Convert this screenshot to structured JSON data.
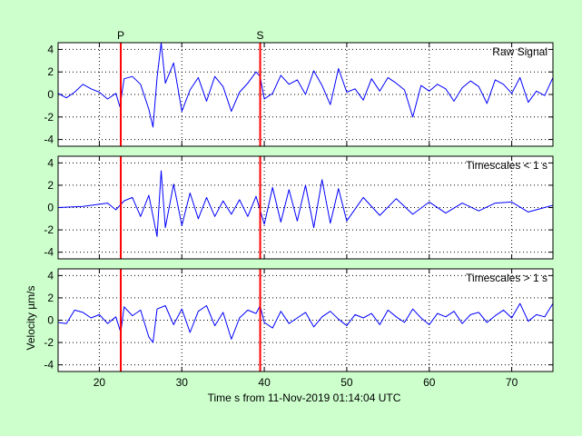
{
  "colors": {
    "background": "#ccffcc",
    "axes_face": "#ffffff",
    "signal": "#0000ff",
    "phase_marker": "#ff0000",
    "grid": "#000000"
  },
  "chart_data": [
    {
      "type": "line",
      "panel_label": "Raw Signal",
      "xlim": [
        15,
        75
      ],
      "ylim": [
        -4.6,
        4.6
      ],
      "yticks": [
        -4,
        -2,
        0,
        2,
        4
      ],
      "ytick_labels": [
        "-4",
        "-2",
        "0",
        "2",
        "4"
      ],
      "grid": "dotted",
      "series": [
        {
          "x": [
            15,
            16,
            17,
            18,
            19,
            20,
            21,
            22,
            22.5,
            23,
            24,
            25,
            26,
            26.5,
            27,
            27.5,
            28,
            29,
            30,
            31,
            32,
            33,
            34,
            35,
            36,
            37,
            38,
            39,
            39.5,
            40,
            41,
            42,
            43,
            44,
            45,
            46,
            47,
            48,
            49,
            50,
            51,
            52,
            53,
            54,
            55,
            56,
            57,
            58,
            59,
            60,
            61,
            62,
            63,
            64,
            65,
            66,
            67,
            68,
            69,
            70,
            71,
            72,
            73,
            74,
            75
          ],
          "y": [
            0.1,
            -0.3,
            0.2,
            0.9,
            0.5,
            0.2,
            -0.4,
            0.1,
            -1.1,
            1.4,
            1.6,
            0.9,
            -1.3,
            -2.9,
            1.5,
            4.6,
            1.0,
            2.8,
            -1.5,
            0.4,
            1.5,
            -0.6,
            1.6,
            0.7,
            -1.5,
            0.2,
            1.0,
            2.0,
            1.6,
            -0.4,
            0.1,
            1.7,
            0.9,
            1.3,
            0.0,
            2.1,
            0.8,
            -0.9,
            2.3,
            0.2,
            0.5,
            -0.5,
            1.4,
            0.3,
            1.5,
            1.0,
            0.4,
            -2.0,
            0.8,
            0.3,
            0.9,
            0.5,
            -0.6,
            0.6,
            1.2,
            0.7,
            -0.8,
            1.3,
            0.9,
            0.1,
            1.5,
            -0.7,
            0.3,
            -0.1,
            1.5
          ]
        }
      ]
    },
    {
      "type": "line",
      "panel_label": "Timescales < 1 s",
      "xlim": [
        15,
        75
      ],
      "ylim": [
        -4.6,
        4.6
      ],
      "yticks": [
        -4,
        -2,
        0,
        2,
        4
      ],
      "ytick_labels": [
        "-4",
        "-2",
        "0",
        "2",
        "4"
      ],
      "grid": "dotted",
      "series": [
        {
          "x": [
            15,
            18,
            21,
            22,
            23,
            24,
            25,
            26,
            27,
            27.5,
            28,
            29,
            30,
            31,
            32,
            33,
            34,
            35,
            36,
            37,
            38,
            39,
            40,
            41,
            42,
            43,
            44,
            45,
            46,
            47,
            48,
            49,
            50,
            52,
            54,
            56,
            58,
            60,
            62,
            64,
            66,
            68,
            70,
            72,
            75
          ],
          "y": [
            0.0,
            0.1,
            0.4,
            -0.2,
            0.6,
            0.9,
            -0.8,
            1.1,
            -2.6,
            3.3,
            -1.8,
            2.1,
            -1.6,
            1.3,
            -1.0,
            0.9,
            -0.8,
            0.6,
            -0.6,
            0.7,
            -0.8,
            1.0,
            -1.5,
            1.8,
            -1.3,
            1.6,
            -1.2,
            2.0,
            -1.8,
            2.5,
            -1.4,
            1.7,
            -1.2,
            0.9,
            -0.7,
            0.8,
            -0.6,
            0.5,
            -0.5,
            0.4,
            -0.3,
            0.4,
            0.5,
            -0.4,
            0.2
          ]
        }
      ]
    },
    {
      "type": "line",
      "panel_label": "Timescales > 1 s",
      "ylabel": "Velocity µm/s",
      "xlabel": "Time s from 11-Nov-2019 01:14:04 UTC",
      "xlim": [
        15,
        75
      ],
      "xticks": [
        20,
        30,
        40,
        50,
        60,
        70
      ],
      "xtick_labels": [
        "20",
        "30",
        "40",
        "50",
        "60",
        "70"
      ],
      "ylim": [
        -4.6,
        4.6
      ],
      "yticks": [
        -4,
        -2,
        0,
        2,
        4
      ],
      "ytick_labels": [
        "-4",
        "-2",
        "0",
        "2",
        "4"
      ],
      "grid": "dotted",
      "series": [
        {
          "x": [
            15,
            16,
            17,
            18,
            19,
            20,
            21,
            22,
            22.6,
            23,
            24,
            25,
            26,
            26.5,
            27,
            28,
            29,
            30,
            31,
            32,
            33,
            34,
            35,
            36,
            37,
            38,
            39,
            39.5,
            40,
            41,
            42,
            43,
            44,
            45,
            46,
            47,
            48,
            49,
            50,
            51,
            52,
            53,
            54,
            55,
            56,
            57,
            58,
            59,
            60,
            61,
            62,
            63,
            64,
            65,
            66,
            67,
            68,
            69,
            70,
            71,
            72,
            73,
            74,
            75
          ],
          "y": [
            -0.2,
            -0.3,
            0.9,
            0.7,
            0.2,
            0.5,
            -0.3,
            0.3,
            -1.1,
            1.2,
            0.4,
            0.9,
            -1.5,
            -2.0,
            1.0,
            1.3,
            -0.4,
            1.0,
            -1.1,
            0.8,
            1.3,
            -0.5,
            0.7,
            -1.7,
            0.2,
            0.9,
            0.6,
            1.3,
            -0.2,
            -0.7,
            0.8,
            -0.3,
            0.2,
            0.7,
            -0.6,
            0.3,
            0.8,
            0.1,
            -0.5,
            0.5,
            0.2,
            0.6,
            -0.4,
            0.9,
            0.3,
            -0.2,
            1.0,
            0.2,
            -0.4,
            0.6,
            0.3,
            0.8,
            -0.3,
            0.5,
            0.7,
            -0.2,
            0.4,
            0.9,
            0.2,
            1.5,
            -0.1,
            0.5,
            0.3,
            1.5
          ]
        }
      ]
    }
  ],
  "phase_markers": [
    {
      "label": "P",
      "time": 22.6
    },
    {
      "label": "S",
      "time": 39.5
    }
  ]
}
